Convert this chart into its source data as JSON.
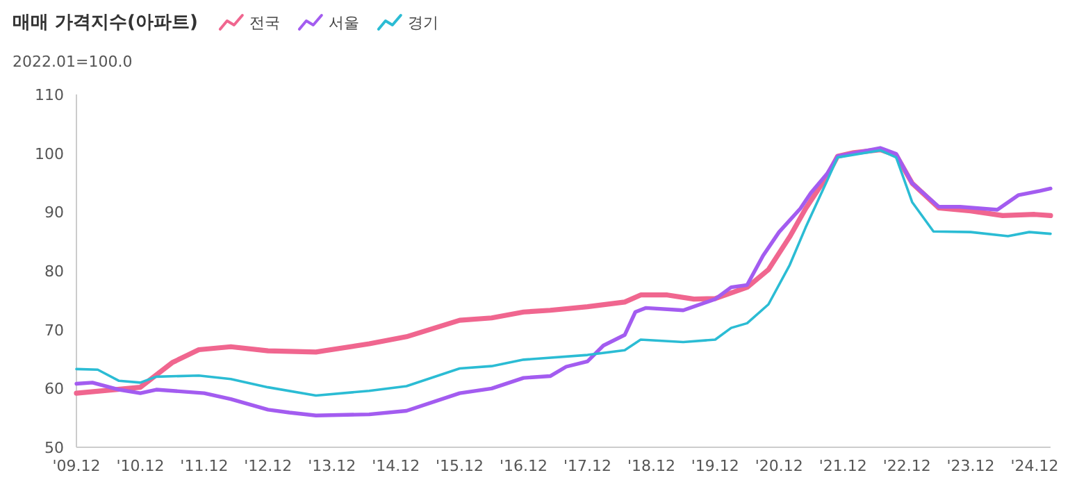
{
  "chart_data": {
    "type": "line",
    "title": "매매 가격지수(아파트)",
    "subtitle": "2022.01=100.0",
    "legend": "top",
    "grid": false,
    "line_style": "solid",
    "marker": "none",
    "xlim": [
      "2009-12",
      "2025-03"
    ],
    "ylim": [
      50,
      110
    ],
    "yticks": [
      50,
      60,
      70,
      80,
      90,
      100,
      110
    ],
    "xticks": [
      {
        "value": "2009-12",
        "label": "'09.12"
      },
      {
        "value": "2010-12",
        "label": "'10.12"
      },
      {
        "value": "2011-12",
        "label": "'11.12"
      },
      {
        "value": "2012-12",
        "label": "'12.12"
      },
      {
        "value": "2013-12",
        "label": "'13.12"
      },
      {
        "value": "2014-12",
        "label": "'14.12"
      },
      {
        "value": "2015-12",
        "label": "'15.12"
      },
      {
        "value": "2016-12",
        "label": "'16.12"
      },
      {
        "value": "2017-12",
        "label": "'17.12"
      },
      {
        "value": "2018-12",
        "label": "'18.12"
      },
      {
        "value": "2019-12",
        "label": "'19.12"
      },
      {
        "value": "2020-12",
        "label": "'20.12"
      },
      {
        "value": "2021-12",
        "label": "'21.12"
      },
      {
        "value": "2022-12",
        "label": "'22.12"
      },
      {
        "value": "2023-12",
        "label": "'23.12"
      },
      {
        "value": "2024-12",
        "label": "'24.12"
      }
    ],
    "series": [
      {
        "name": "전국",
        "color": "#f0668f",
        "x": [
          "2009-12",
          "2010-12",
          "2011-06",
          "2011-11",
          "2012-05",
          "2012-12",
          "2013-09",
          "2014-07",
          "2015-02",
          "2015-12",
          "2016-06",
          "2016-12",
          "2017-05",
          "2017-12",
          "2018-07",
          "2018-10",
          "2019-03",
          "2019-08",
          "2019-12",
          "2020-06",
          "2020-10",
          "2021-02",
          "2021-05",
          "2021-09",
          "2021-11",
          "2022-02",
          "2022-07",
          "2022-10",
          "2023-01",
          "2023-06",
          "2023-12",
          "2024-06",
          "2024-12",
          "2025-03"
        ],
        "values": [
          59.2,
          60.2,
          64.4,
          66.6,
          67.1,
          66.4,
          66.2,
          67.6,
          68.8,
          71.6,
          72,
          73,
          73.3,
          73.9,
          74.7,
          75.9,
          75.9,
          75.2,
          75.3,
          77.2,
          80.2,
          85.8,
          90.6,
          96.1,
          99.5,
          100.1,
          100.6,
          99.7,
          94.9,
          90.7,
          90.2,
          89.4,
          89.6,
          89.4
        ]
      },
      {
        "name": "서울",
        "color": "#a35cf0",
        "x": [
          "2009-12",
          "2010-03",
          "2010-08",
          "2010-12",
          "2011-03",
          "2011-12",
          "2012-05",
          "2012-12",
          "2013-04",
          "2013-09",
          "2014-07",
          "2015-02",
          "2015-12",
          "2016-06",
          "2016-12",
          "2017-05",
          "2017-08",
          "2017-12",
          "2018-03",
          "2018-07",
          "2018-09",
          "2018-11",
          "2019-06",
          "2019-12",
          "2020-03",
          "2020-06",
          "2020-09",
          "2020-12",
          "2021-04",
          "2021-06",
          "2021-09",
          "2021-11",
          "2022-07",
          "2022-10",
          "2023-01",
          "2023-06",
          "2023-10",
          "2024-05",
          "2024-09",
          "2025-01",
          "2025-03"
        ],
        "values": [
          60.8,
          61,
          59.8,
          59.2,
          59.8,
          59.2,
          58.2,
          56.4,
          55.9,
          55.4,
          55.6,
          56.2,
          59.2,
          60,
          61.8,
          62.1,
          63.7,
          64.6,
          67.3,
          69.1,
          73,
          73.7,
          73.3,
          75.2,
          77.2,
          77.6,
          82.6,
          86.6,
          90.6,
          93.3,
          96.5,
          99.5,
          100.9,
          99.9,
          94.9,
          90.9,
          90.9,
          90.4,
          92.9,
          93.6,
          94
        ]
      },
      {
        "name": "경기",
        "color": "#2bbcd4",
        "x": [
          "2009-12",
          "2010-04",
          "2010-08",
          "2010-12",
          "2011-03",
          "2011-11",
          "2012-05",
          "2012-12",
          "2013-09",
          "2014-07",
          "2015-02",
          "2015-12",
          "2016-06",
          "2016-12",
          "2017-12",
          "2018-07",
          "2018-10",
          "2019-06",
          "2019-12",
          "2020-03",
          "2020-06",
          "2020-10",
          "2021-02",
          "2021-05",
          "2021-09",
          "2021-11",
          "2022-07",
          "2022-10",
          "2023-01",
          "2023-05",
          "2023-12",
          "2024-07",
          "2024-11",
          "2025-03"
        ],
        "values": [
          63.3,
          63.2,
          61.3,
          61,
          62,
          62.2,
          61.6,
          60.2,
          58.8,
          59.6,
          60.4,
          63.4,
          63.8,
          64.9,
          65.7,
          66.5,
          68.3,
          67.9,
          68.3,
          70.3,
          71.1,
          74.3,
          81,
          87.4,
          95.3,
          99.3,
          100.5,
          99.3,
          91.7,
          86.7,
          86.6,
          85.9,
          86.6,
          86.3
        ]
      }
    ]
  }
}
